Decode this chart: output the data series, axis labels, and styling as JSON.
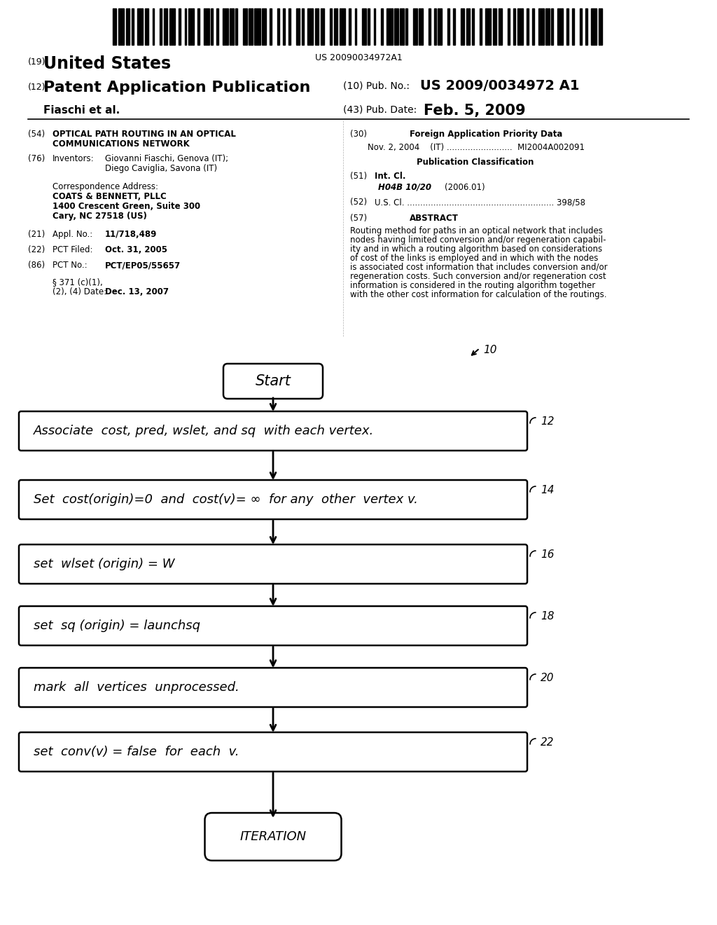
{
  "background_color": "#ffffff",
  "barcode_text": "US 20090034972A1",
  "header": {
    "country_num": "(19)",
    "country": "United States",
    "app_num": "(12)",
    "app_title": "Patent Application Publication",
    "pub_num_label": "(10) Pub. No.:",
    "pub_num": "US 2009/0034972 A1",
    "author": "Fiaschi et al.",
    "pub_date_label": "(43) Pub. Date:",
    "pub_date": "Feb. 5, 2009"
  },
  "left_col": {
    "field54_num": "(54)",
    "field54_title_line1": "OPTICAL PATH ROUTING IN AN OPTICAL",
    "field54_title_line2": "COMMUNICATIONS NETWORK",
    "field76_num": "(76)",
    "field76_label": "Inventors:",
    "field76_value_line1": "Giovanni Fiaschi, Genova (IT);",
    "field76_value_line2": "Diego Caviglia, Savona (IT)",
    "corr_label": "Correspondence Address:",
    "corr_name": "COATS & BENNETT, PLLC",
    "corr_addr1": "1400 Crescent Green, Suite 300",
    "corr_addr2": "Cary, NC 27518 (US)",
    "field21_num": "(21)",
    "field21_label": "Appl. No.:",
    "field21_value": "11/718,489",
    "field22_num": "(22)",
    "field22_label": "PCT Filed:",
    "field22_value": "Oct. 31, 2005",
    "field86_num": "(86)",
    "field86_label": "PCT No.:",
    "field86_value": "PCT/EP05/55657",
    "field371_label_line1": "§ 371 (c)(1),",
    "field371_label_line2": "(2), (4) Date:",
    "field371_value": "Dec. 13, 2007"
  },
  "right_col": {
    "field30_num": "(30)",
    "field30_title": "Foreign Application Priority Data",
    "field30_entry": "Nov. 2, 2004    (IT) .........................  MI2004A002091",
    "pub_class_title": "Publication Classification",
    "field51_num": "(51)",
    "field51_label": "Int. Cl.",
    "field51_value": "H04B 10/20",
    "field51_year": "(2006.01)",
    "field52_num": "(52)",
    "field52_label": "U.S. Cl. ........................................................ 398/58",
    "field57_num": "(57)",
    "field57_title": "ABSTRACT",
    "abstract_lines": [
      "Routing method for paths in an optical network that includes",
      "nodes having limited conversion and/or regeneration capabil-",
      "ity and in which a routing algorithm based on considerations",
      "of cost of the links is employed and in which with the nodes",
      "is associated cost information that includes conversion and/or",
      "regeneration costs. Such conversion and/or regeneration cost",
      "information is considered in the routing algorithm together",
      "with the other cost information for calculation of the routings."
    ]
  },
  "flowchart": {
    "start_label": "Start",
    "box1_label": "Associate  cost, pred, wslet, and sq  with each vertex.",
    "box1_num": "12",
    "box2_label": "Set  cost(origin)=0  and  cost(v)= ∞  for any  other  vertex v.",
    "box2_num": "14",
    "box3_label": "set  wlset (origin) = W",
    "box3_num": "16",
    "box4_label": "set  sq (origin) = launchsq",
    "box4_num": "18",
    "box5_label": "mark  all  vertices  unprocessed.",
    "box5_num": "20",
    "box6_label": "set  conv(v) = false  for  each  v.",
    "box6_num": "22",
    "end_label": "ITERATION",
    "flow_num": "10"
  }
}
